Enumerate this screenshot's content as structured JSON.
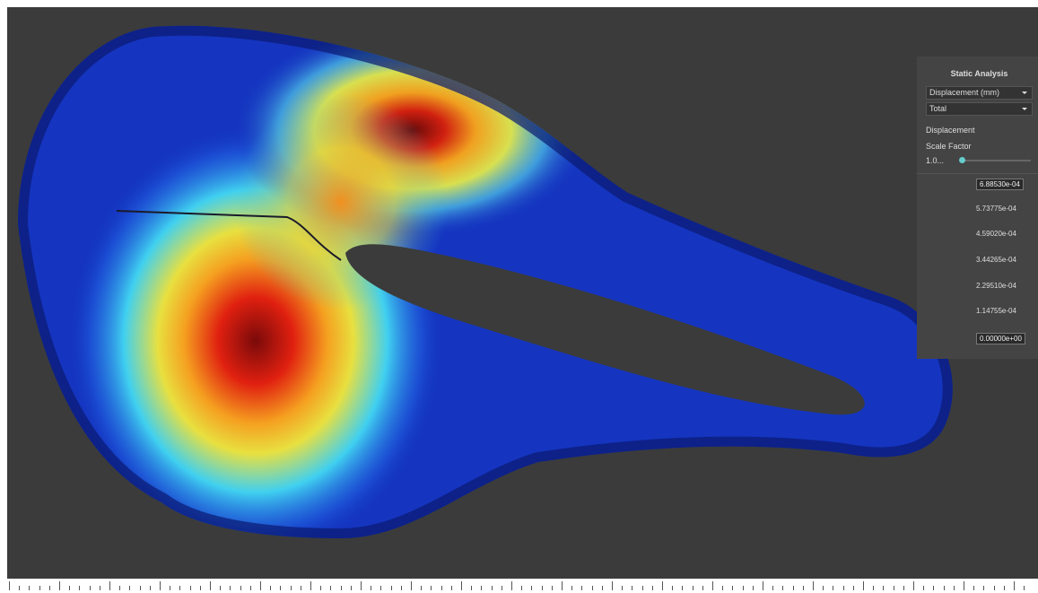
{
  "panel": {
    "title": "Static Analysis",
    "result_type": "Displacement (mm)",
    "component": "Total",
    "displacement_label": "Displacement",
    "scale_factor_label": "Scale Factor",
    "scale_factor_value": "1.0..."
  },
  "legend": {
    "labels": [
      "6.88530e-04",
      "5.73775e-04",
      "4.59020e-04",
      "3.44265e-04",
      "2.29510e-04",
      "1.14755e-04",
      "0.00000e+00"
    ]
  }
}
